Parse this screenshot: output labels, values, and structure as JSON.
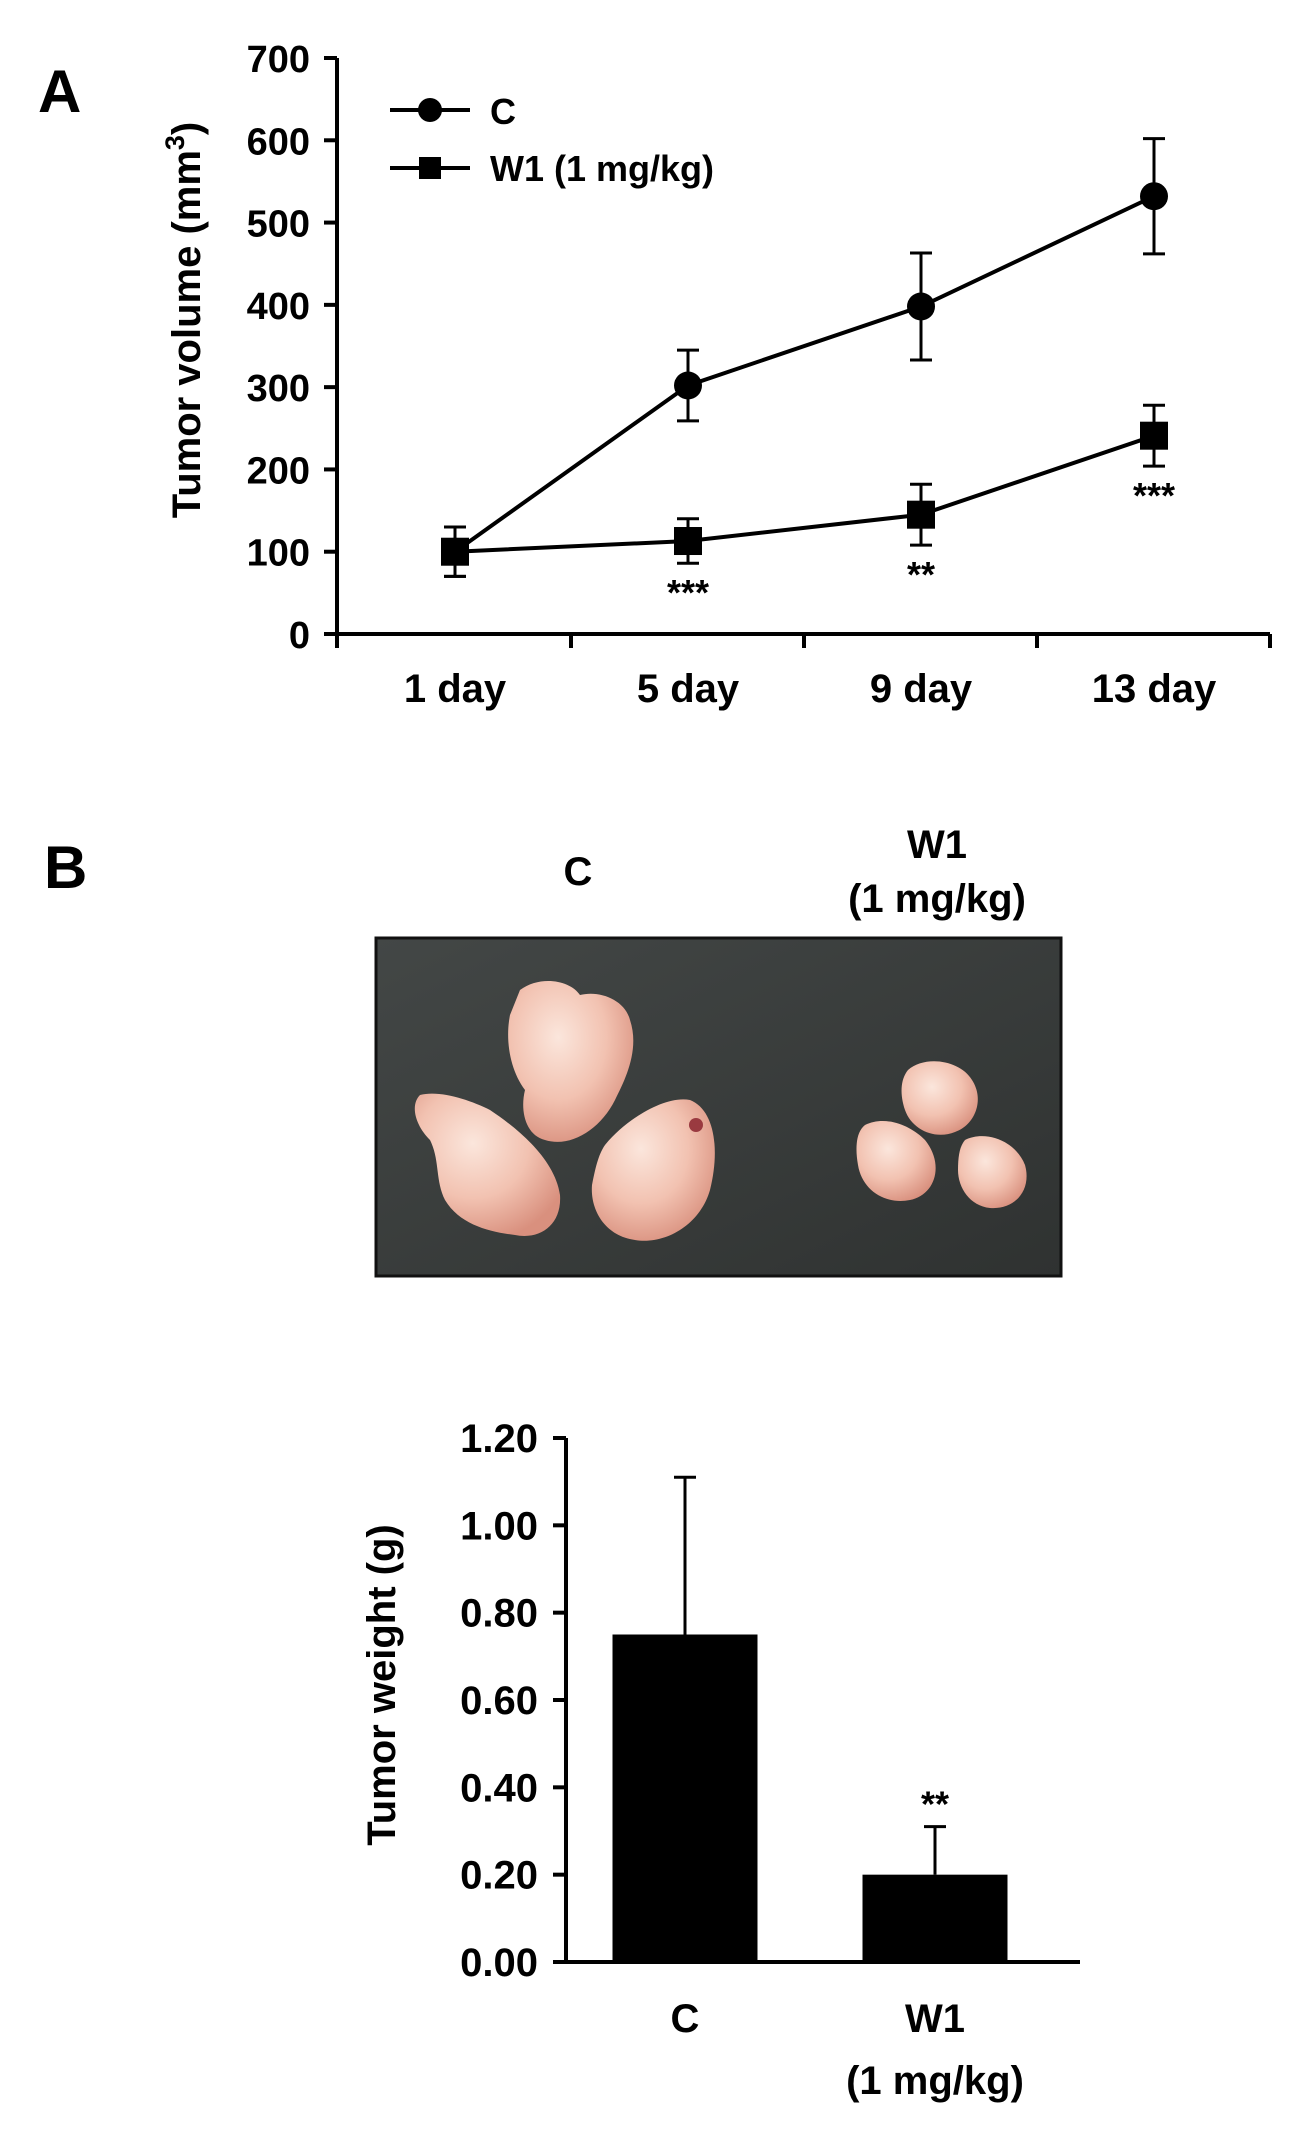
{
  "panel_a": {
    "letter": "A",
    "chart_data": {
      "type": "line",
      "categories": [
        "1 day",
        "5 day",
        "9 day",
        "13 day"
      ],
      "ylabel": "Tumor  volume (mm",
      "ylabel_sup": "3",
      "ylabel_close": ")",
      "ylim": [
        0,
        700
      ],
      "yticks": [
        "0",
        "100",
        "200",
        "300",
        "400",
        "500",
        "600",
        "700"
      ],
      "legend_placement": "top-left",
      "series": [
        {
          "name": "C",
          "marker": "circle",
          "values": [
            100,
            302,
            398,
            532
          ],
          "errors": [
            30,
            43,
            65,
            70
          ]
        },
        {
          "name": "W1 (1 mg/kg)",
          "marker": "square",
          "values": [
            100,
            113,
            145,
            241
          ],
          "errors": [
            30,
            27,
            37,
            37
          ]
        }
      ],
      "annotations": [
        {
          "category": "5 day",
          "text": "***"
        },
        {
          "category": "9 day",
          "text": "**"
        },
        {
          "category": "13 day",
          "text": "***"
        }
      ],
      "color": "#000000"
    }
  },
  "panel_b": {
    "letter": "B",
    "photo": {
      "label_c": "C",
      "label_w1_line1": "W1",
      "label_w1_line2": "(1 mg/kg)",
      "background_color": "#3a3d3c",
      "tumor_color": "#f0bfae"
    },
    "chart_data": {
      "type": "bar",
      "categories": [
        "C",
        "W1"
      ],
      "category_sublabels": [
        "",
        "(1 mg/kg)"
      ],
      "values": [
        0.75,
        0.2
      ],
      "errors": [
        0.36,
        0.11
      ],
      "ylabel": "Tumor  weight (g)",
      "ylim": [
        0,
        1.2
      ],
      "yticks": [
        "0.00",
        "0.20",
        "0.40",
        "0.60",
        "0.80",
        "1.00",
        "1.20"
      ],
      "annotations": [
        {
          "category": "W1",
          "text": "**"
        }
      ],
      "bar_color": "#000000"
    }
  }
}
